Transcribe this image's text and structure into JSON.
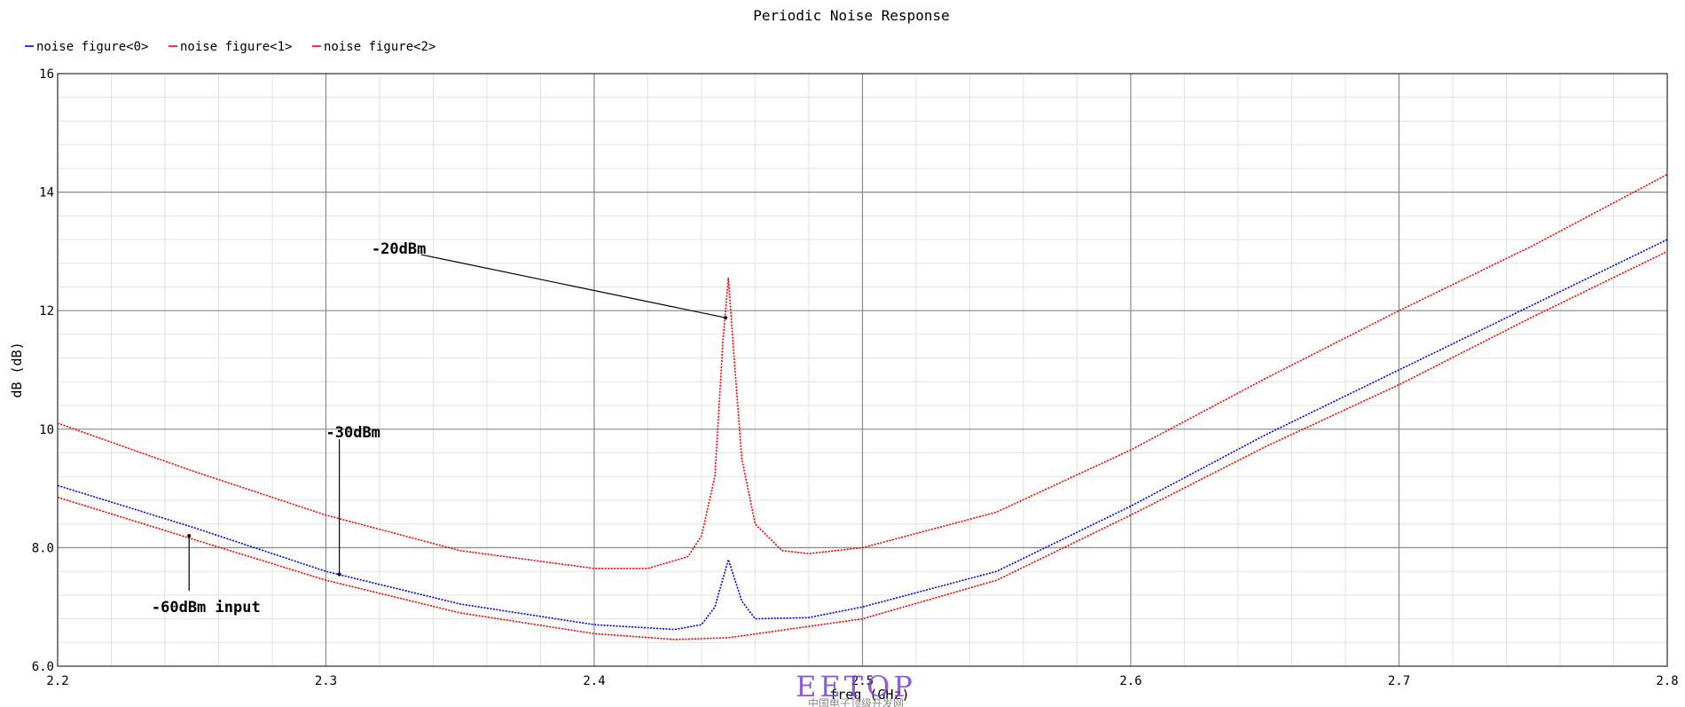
{
  "chart_data": {
    "type": "line",
    "title": "Periodic Noise Response",
    "xlabel": "freq (GHz)",
    "ylabel": "dB (dB)",
    "xlim": [
      2.2,
      2.8
    ],
    "ylim": [
      6.0,
      16.0
    ],
    "x_ticks": [
      "2.2",
      "2.3",
      "2.4",
      "2.5",
      "2.6",
      "2.7",
      "2.8"
    ],
    "y_ticks": [
      "6.0",
      "8.0",
      "10",
      "12",
      "14",
      "16"
    ],
    "grid": true,
    "legend_position": "top-left",
    "series": [
      {
        "name": "noise figure<0>",
        "color": "#0000ff",
        "points": [
          [
            2.2,
            9.05
          ],
          [
            2.25,
            8.35
          ],
          [
            2.3,
            7.6
          ],
          [
            2.35,
            7.05
          ],
          [
            2.4,
            6.7
          ],
          [
            2.43,
            6.62
          ],
          [
            2.44,
            6.7
          ],
          [
            2.445,
            7.0
          ],
          [
            2.45,
            7.8
          ],
          [
            2.455,
            7.1
          ],
          [
            2.46,
            6.8
          ],
          [
            2.48,
            6.82
          ],
          [
            2.5,
            7.0
          ],
          [
            2.55,
            7.6
          ],
          [
            2.6,
            8.7
          ],
          [
            2.65,
            9.9
          ],
          [
            2.7,
            11.0
          ],
          [
            2.75,
            12.1
          ],
          [
            2.8,
            13.2
          ]
        ]
      },
      {
        "name": "noise figure<1>",
        "color": "#ff0000",
        "points": [
          [
            2.2,
            10.1
          ],
          [
            2.25,
            9.3
          ],
          [
            2.3,
            8.55
          ],
          [
            2.35,
            7.95
          ],
          [
            2.4,
            7.65
          ],
          [
            2.42,
            7.65
          ],
          [
            2.435,
            7.85
          ],
          [
            2.44,
            8.2
          ],
          [
            2.445,
            9.2
          ],
          [
            2.448,
            11.5
          ],
          [
            2.45,
            12.55
          ],
          [
            2.452,
            11.3
          ],
          [
            2.455,
            9.5
          ],
          [
            2.46,
            8.4
          ],
          [
            2.47,
            7.95
          ],
          [
            2.48,
            7.9
          ],
          [
            2.5,
            8.0
          ],
          [
            2.55,
            8.6
          ],
          [
            2.6,
            9.65
          ],
          [
            2.65,
            10.85
          ],
          [
            2.7,
            12.0
          ],
          [
            2.75,
            13.1
          ],
          [
            2.8,
            14.3
          ]
        ]
      },
      {
        "name": "noise figure<2>",
        "color": "#ff0000",
        "points": [
          [
            2.2,
            8.85
          ],
          [
            2.25,
            8.15
          ],
          [
            2.3,
            7.45
          ],
          [
            2.35,
            6.9
          ],
          [
            2.4,
            6.55
          ],
          [
            2.43,
            6.45
          ],
          [
            2.45,
            6.48
          ],
          [
            2.5,
            6.8
          ],
          [
            2.55,
            7.45
          ],
          [
            2.6,
            8.55
          ],
          [
            2.65,
            9.7
          ],
          [
            2.7,
            10.75
          ],
          [
            2.75,
            11.9
          ],
          [
            2.8,
            13.0
          ]
        ]
      }
    ],
    "annotations": [
      {
        "text": "-20dBm",
        "label_at": [
          2.317,
          13.05
        ],
        "point_at": [
          2.449,
          11.88
        ]
      },
      {
        "text": "-30dBm",
        "label_at": [
          2.3,
          9.95
        ],
        "point_at": [
          2.305,
          7.55
        ]
      },
      {
        "text": "-60dBm input",
        "label_at": [
          2.235,
          7.0
        ],
        "point_at": [
          2.249,
          8.2
        ]
      }
    ]
  },
  "watermark": {
    "text": "EETOP",
    "subtext": "中国电子顶级开发网"
  }
}
